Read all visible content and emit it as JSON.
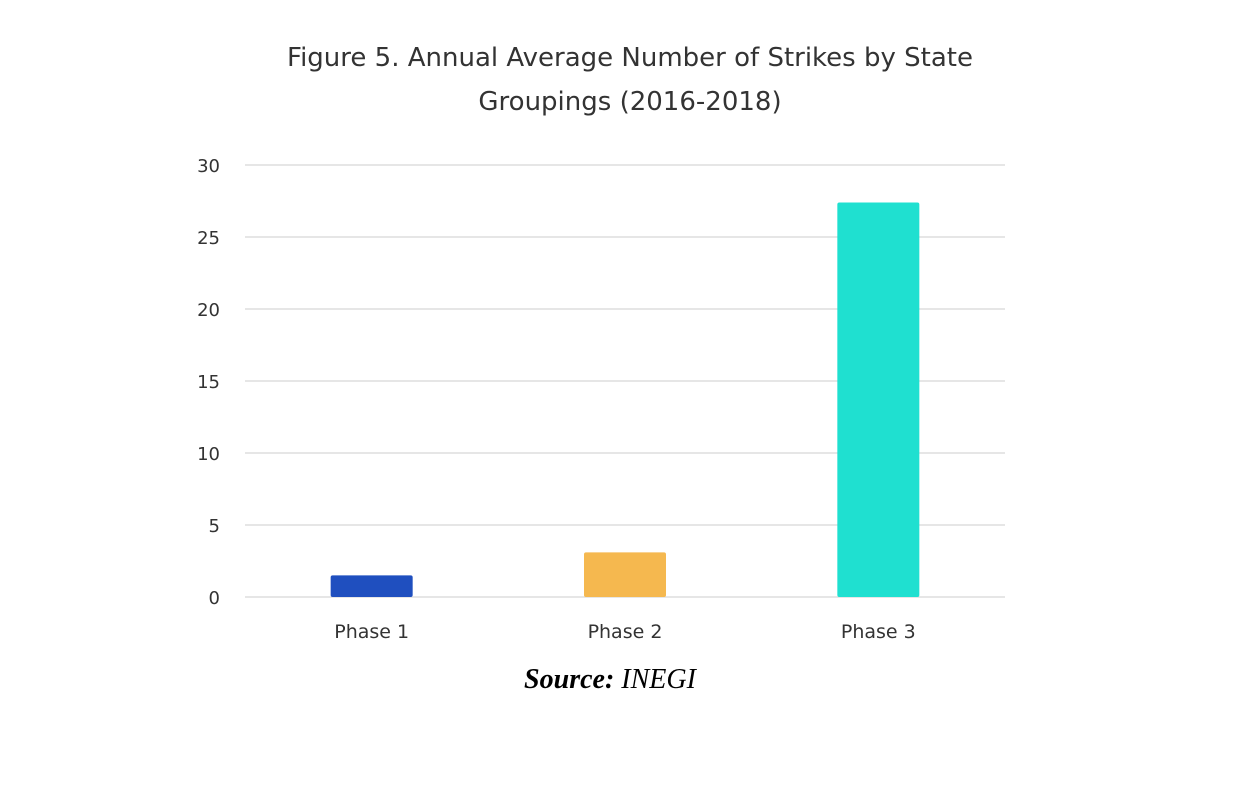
{
  "chart_data": {
    "type": "bar",
    "title_lines": [
      "Figure 5. Annual Average Number of Strikes by State",
      "Groupings (2016-2018)"
    ],
    "categories": [
      "Phase 1",
      "Phase 2",
      "Phase 3"
    ],
    "values": [
      1.5,
      3.1,
      27.4
    ],
    "colors": [
      "#1f4fbf",
      "#f5b84f",
      "#1fe0d0"
    ],
    "ylim": [
      0,
      30
    ],
    "yticks": [
      0,
      5,
      10,
      15,
      20,
      25,
      30
    ],
    "grid": true,
    "legend": "none",
    "xlabel": "",
    "ylabel": ""
  },
  "source": {
    "label": "Source:",
    "value": "INEGI"
  }
}
